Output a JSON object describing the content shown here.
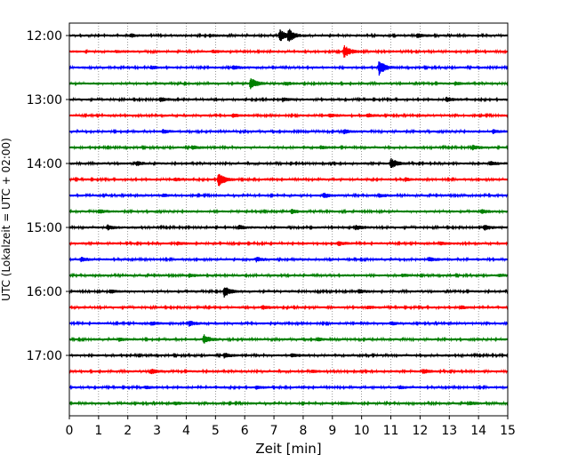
{
  "chart_data": {
    "type": "line",
    "xlabel": "Zeit  [min]",
    "ylabel": "UTC (Lokalzeit = UTC + 02:00)",
    "xlim": [
      0,
      15
    ],
    "xticks": [
      "0",
      "1",
      "2",
      "3",
      "4",
      "5",
      "6",
      "7",
      "8",
      "9",
      "10",
      "11",
      "12",
      "13",
      "14",
      "15"
    ],
    "yticks": [
      "12:00",
      "13:00",
      "14:00",
      "15:00",
      "16:00",
      "17:00"
    ],
    "grid": "vertical dotted",
    "colors": [
      "#000000",
      "#ff0000",
      "#0000ff",
      "#008000"
    ],
    "series": [
      {
        "start": "12:00",
        "color": "#000000",
        "events": [
          [
            7.2,
            1.0
          ],
          [
            7.5,
            0.9
          ],
          [
            2.1,
            0.25
          ],
          [
            4.8,
            0.2
          ],
          [
            11.9,
            0.3
          ]
        ]
      },
      {
        "start": "12:15",
        "color": "#ff0000",
        "events": [
          [
            9.4,
            1.0
          ],
          [
            4.9,
            0.2
          ],
          [
            1.6,
            0.15
          ]
        ]
      },
      {
        "start": "12:30",
        "color": "#0000ff",
        "events": [
          [
            10.6,
            1.2
          ],
          [
            5.6,
            0.25
          ],
          [
            2.8,
            0.2
          ]
        ]
      },
      {
        "start": "12:45",
        "color": "#008000",
        "events": [
          [
            6.2,
            0.85
          ],
          [
            7.4,
            0.25
          ],
          [
            13.2,
            0.2
          ]
        ]
      },
      {
        "start": "13:00",
        "color": "#000000",
        "events": [
          [
            3.1,
            0.3
          ],
          [
            7.3,
            0.25
          ],
          [
            12.9,
            0.35
          ]
        ]
      },
      {
        "start": "13:15",
        "color": "#ff0000",
        "events": [
          [
            5.6,
            0.25
          ],
          [
            8.9,
            0.25
          ],
          [
            10.2,
            0.25
          ]
        ]
      },
      {
        "start": "13:30",
        "color": "#0000ff",
        "events": [
          [
            3.2,
            0.25
          ],
          [
            9.4,
            0.3
          ],
          [
            14.5,
            0.3
          ]
        ]
      },
      {
        "start": "13:45",
        "color": "#008000",
        "events": [
          [
            4.2,
            0.25
          ],
          [
            8.6,
            0.2
          ],
          [
            13.8,
            0.3
          ]
        ]
      },
      {
        "start": "14:00",
        "color": "#000000",
        "events": [
          [
            11.0,
            0.8
          ],
          [
            2.3,
            0.3
          ],
          [
            14.4,
            0.3
          ]
        ]
      },
      {
        "start": "14:15",
        "color": "#ff0000",
        "events": [
          [
            5.1,
            1.1
          ],
          [
            3.6,
            0.2
          ],
          [
            11.5,
            0.2
          ]
        ]
      },
      {
        "start": "14:30",
        "color": "#0000ff",
        "events": [
          [
            8.7,
            0.35
          ],
          [
            3.2,
            0.2
          ],
          [
            10.6,
            0.25
          ]
        ]
      },
      {
        "start": "14:45",
        "color": "#008000",
        "events": [
          [
            1.0,
            0.3
          ],
          [
            7.6,
            0.3
          ],
          [
            14.1,
            0.3
          ]
        ]
      },
      {
        "start": "15:00",
        "color": "#000000",
        "events": [
          [
            1.3,
            0.35
          ],
          [
            9.8,
            0.35
          ],
          [
            14.2,
            0.4
          ],
          [
            5.8,
            0.3
          ]
        ]
      },
      {
        "start": "15:15",
        "color": "#ff0000",
        "events": [
          [
            9.2,
            0.3
          ],
          [
            3.7,
            0.2
          ],
          [
            12.7,
            0.2
          ]
        ]
      },
      {
        "start": "15:30",
        "color": "#0000ff",
        "events": [
          [
            6.4,
            0.35
          ],
          [
            12.3,
            0.35
          ],
          [
            0.4,
            0.3
          ]
        ]
      },
      {
        "start": "15:45",
        "color": "#008000",
        "events": [
          [
            4.1,
            0.25
          ],
          [
            11.4,
            0.2
          ],
          [
            14.7,
            0.2
          ]
        ]
      },
      {
        "start": "16:00",
        "color": "#000000",
        "events": [
          [
            5.3,
            0.8
          ],
          [
            9.9,
            0.3
          ],
          [
            1.4,
            0.25
          ]
        ]
      },
      {
        "start": "16:15",
        "color": "#ff0000",
        "events": [
          [
            6.6,
            0.25
          ],
          [
            10.2,
            0.2
          ],
          [
            13.4,
            0.2
          ]
        ]
      },
      {
        "start": "16:30",
        "color": "#0000ff",
        "events": [
          [
            4.1,
            0.35
          ],
          [
            2.8,
            0.25
          ],
          [
            11.0,
            0.25
          ]
        ]
      },
      {
        "start": "16:45",
        "color": "#008000",
        "events": [
          [
            4.6,
            0.7
          ],
          [
            1.7,
            0.25
          ],
          [
            8.5,
            0.2
          ]
        ]
      },
      {
        "start": "17:00",
        "color": "#000000",
        "events": [
          [
            5.3,
            0.35
          ],
          [
            7.6,
            0.25
          ],
          [
            15.0,
            0.3
          ]
        ]
      },
      {
        "start": "17:15",
        "color": "#ff0000",
        "events": [
          [
            2.8,
            0.35
          ],
          [
            12.1,
            0.3
          ],
          [
            8.3,
            0.2
          ]
        ]
      },
      {
        "start": "17:30",
        "color": "#0000ff",
        "events": [
          [
            2.6,
            0.2
          ],
          [
            6.4,
            0.2
          ],
          [
            11.3,
            0.2
          ]
        ]
      },
      {
        "start": "17:45",
        "color": "#008000",
        "events": [
          [
            3.6,
            0.2
          ],
          [
            9.3,
            0.2
          ],
          [
            13.7,
            0.2
          ]
        ]
      }
    ]
  }
}
